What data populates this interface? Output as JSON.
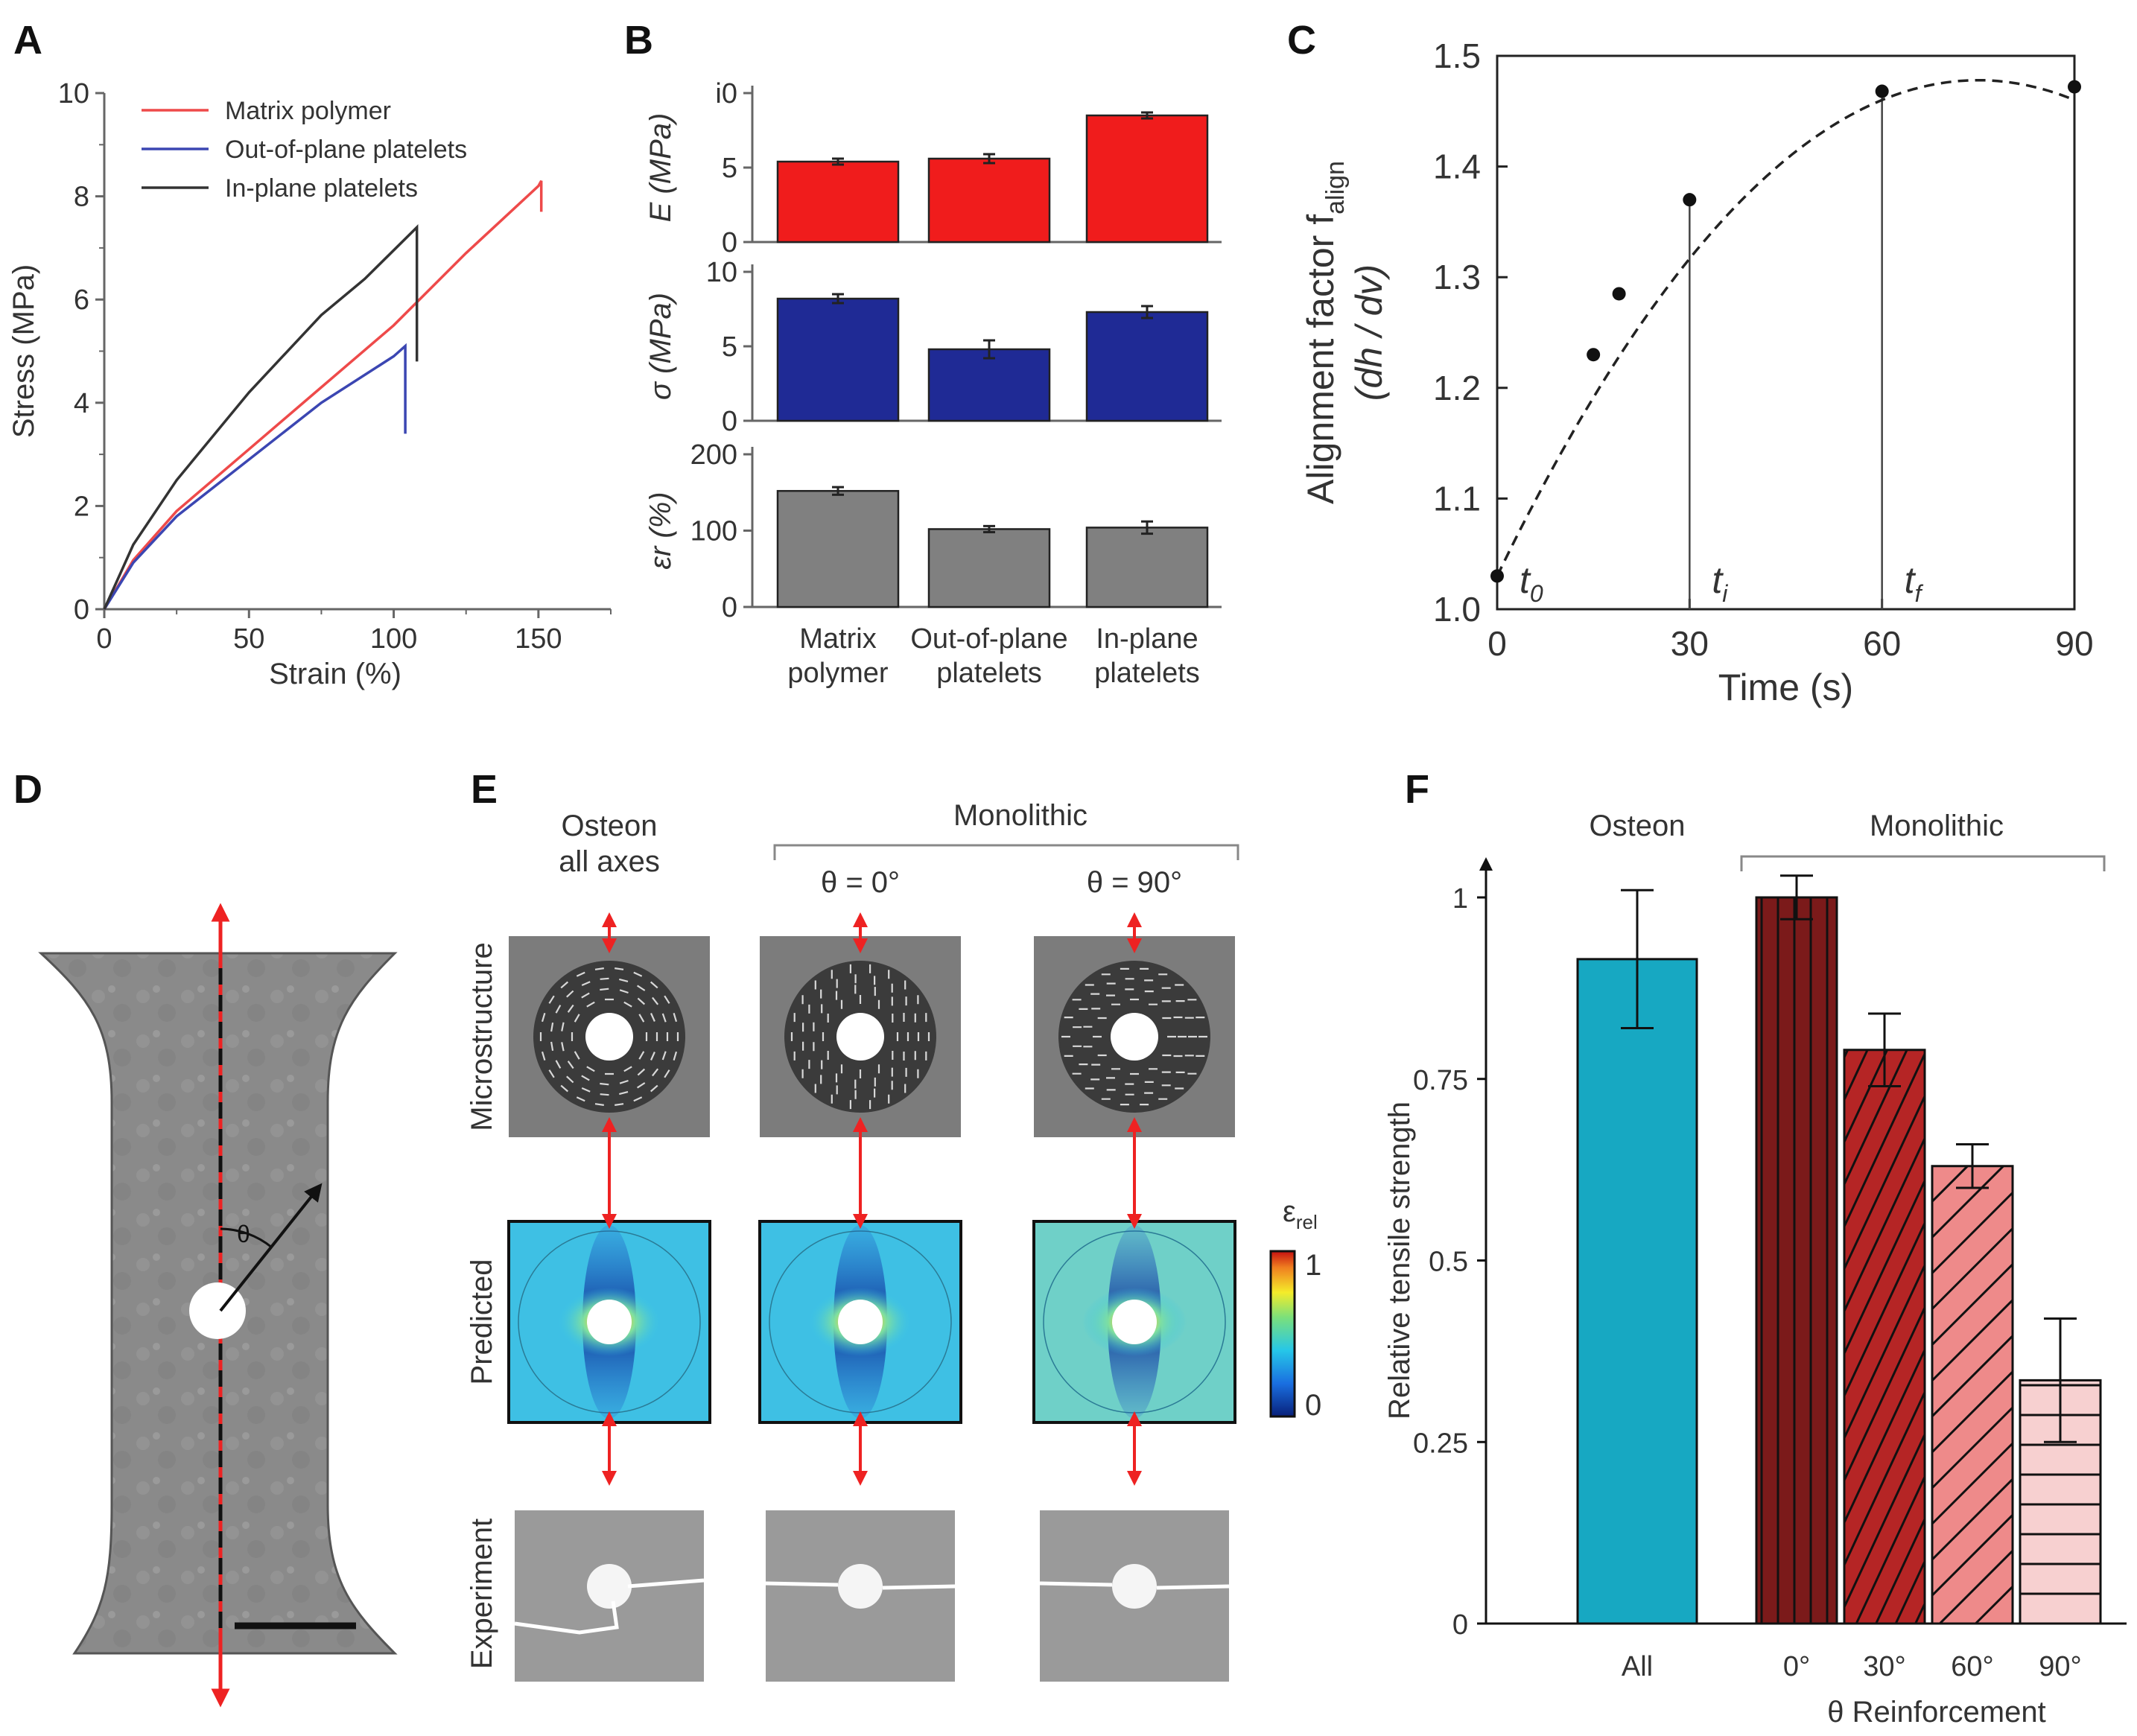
{
  "panel_letters": [
    "A",
    "B",
    "C",
    "D",
    "E",
    "F"
  ],
  "colors": {
    "red_series": "#ee4a4a",
    "blue_series": "#3b46b2",
    "black_series": "#333333",
    "bar_red": "#f01c1c",
    "bar_blue": "#1f2a95",
    "bar_gray": "#808080",
    "bar_cyan": "#17a8c2",
    "bar_dark_red": "#7b1a1a",
    "bar_red_mid": "#b52525",
    "bar_pink": "#ee8a8a",
    "bar_light_pink": "#f7d0d0",
    "photo_gray": "#8c8c8c",
    "arrow_red": "#ee2222"
  },
  "chart_data": [
    {
      "id": "A",
      "type": "line",
      "xlabel": "Strain (%)",
      "ylabel": "Stress (MPa)",
      "xlim": [
        0,
        175
      ],
      "ylim": [
        0,
        10
      ],
      "xticks": [
        "0",
        "50",
        "100",
        "150"
      ],
      "yticks": [
        "0",
        "2",
        "4",
        "6",
        "8",
        "10"
      ],
      "legend_position": "top-left",
      "series": [
        {
          "name": "Matrix polymer",
          "color": "#ee4a4a",
          "x": [
            0,
            10,
            25,
            50,
            75,
            100,
            125,
            150,
            151,
            151
          ],
          "y": [
            0,
            0.95,
            1.9,
            3.1,
            4.3,
            5.5,
            6.9,
            8.2,
            8.3,
            7.7
          ]
        },
        {
          "name": "Out-of-plane platelets",
          "color": "#3b46b2",
          "x": [
            0,
            10,
            25,
            50,
            75,
            100,
            104,
            104
          ],
          "y": [
            0,
            0.9,
            1.8,
            2.9,
            4.0,
            4.9,
            5.1,
            3.4
          ]
        },
        {
          "name": "In-plane platelets",
          "color": "#333333",
          "x": [
            0,
            10,
            25,
            50,
            75,
            90,
            108,
            108
          ],
          "y": [
            0,
            1.25,
            2.5,
            4.2,
            5.7,
            6.4,
            7.4,
            4.8
          ]
        }
      ]
    },
    {
      "id": "B",
      "type": "bar",
      "categories": [
        "Matrix polymer",
        "Out-of-plane platelets",
        "In-plane platelets"
      ],
      "category_lines": [
        [
          "Matrix",
          "polymer"
        ],
        [
          "Out-of-plane",
          "platelets"
        ],
        [
          "In-plane",
          "platelets"
        ]
      ],
      "subplots": [
        {
          "ylabel": "E (MPa)",
          "ylim": [
            0,
            10
          ],
          "yticks": [
            "0",
            "5",
            "i0"
          ],
          "values": [
            5.4,
            5.6,
            8.5
          ],
          "errors": [
            0.2,
            0.3,
            0.2
          ],
          "color": "#f01c1c"
        },
        {
          "ylabel": "σ (MPa)",
          "ylim": [
            0,
            10
          ],
          "yticks": [
            "0",
            "5",
            "10"
          ],
          "values": [
            8.2,
            4.8,
            7.3
          ],
          "errors": [
            0.3,
            0.6,
            0.4
          ],
          "color": "#1f2a95"
        },
        {
          "ylabel": "ε_r (%)",
          "ylim": [
            0,
            200
          ],
          "yticks": [
            "0",
            "100",
            "200"
          ],
          "values": [
            152,
            102,
            104
          ],
          "errors": [
            5,
            4,
            8
          ],
          "color": "#808080"
        }
      ]
    },
    {
      "id": "C",
      "type": "scatter",
      "xlabel": "Time (s)",
      "ylabel_lines": [
        "Alignment factor f_align",
        "(d_h / d_v)"
      ],
      "xlim": [
        0,
        90
      ],
      "ylim": [
        1.0,
        1.5
      ],
      "xticks": [
        "0",
        "30",
        "60",
        "90"
      ],
      "yticks": [
        "1.0",
        "1.1",
        "1.2",
        "1.3",
        "1.4",
        "1.5"
      ],
      "points_x": [
        0,
        15,
        19,
        30,
        60,
        90
      ],
      "points_y": [
        1.03,
        1.23,
        1.285,
        1.37,
        1.468,
        1.472
      ],
      "fit_curve": {
        "style": "dashed",
        "peak_x": 75,
        "peak_y": 1.478
      },
      "time_markers": [
        {
          "x": 0,
          "label": "t",
          "sub": "0"
        },
        {
          "x": 30,
          "label": "t",
          "sub": "i"
        },
        {
          "x": 60,
          "label": "t",
          "sub": "f"
        }
      ]
    },
    {
      "id": "F",
      "type": "bar",
      "ylabel": "Relative tensile strength",
      "xlabel": "θ Reinforcement",
      "ylim": [
        0,
        1.1
      ],
      "yticks": [
        "0",
        "0.25",
        "0.5",
        "0.75",
        "1"
      ],
      "group_labels": [
        "Osteon",
        "Monolithic"
      ],
      "categories": [
        "All",
        "0°",
        "30°",
        "60°",
        "90°"
      ],
      "values": [
        0.915,
        1.0,
        0.79,
        0.63,
        0.335
      ],
      "errors": [
        0.095,
        0.03,
        0.05,
        0.03,
        0.085
      ],
      "hatches": [
        "none",
        "vertical",
        "diagonal-steep",
        "diagonal",
        "horizontal"
      ]
    }
  ],
  "panel_E": {
    "column_titles": [
      [
        "Osteon",
        "all axes"
      ],
      [
        "θ = 0°"
      ],
      [
        "θ = 90°"
      ]
    ],
    "group_title": "Monolithic",
    "row_labels": [
      "Microstructure",
      "Predicted",
      "Experiment"
    ],
    "colorbar": {
      "label": "ε",
      "sub": "rel",
      "max": "1",
      "min": "0"
    }
  },
  "panel_D": {
    "angle_label": "θ"
  }
}
